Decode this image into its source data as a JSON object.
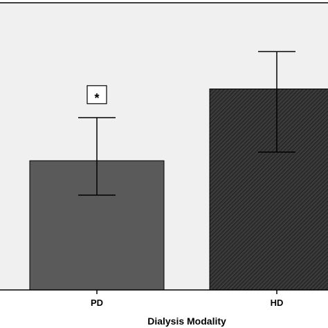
{
  "chart_data": {
    "type": "bar",
    "categories": [
      "PD",
      "HD"
    ],
    "values": [
      45,
      70
    ],
    "error_low": [
      33,
      48
    ],
    "error_high": [
      60,
      83
    ],
    "xlabel": "Dialysis Modality",
    "ylabel": "",
    "ylim": [
      0,
      100
    ],
    "grid": false,
    "annotations": [
      {
        "text": "*",
        "category": "PD",
        "y": 68
      }
    ],
    "colors": {
      "plot_background": "#f0f0f0",
      "PD": "#5a5a5a",
      "HD": "#3a3a3a",
      "HD_hatch": "#1e1e1e"
    },
    "patterns": {
      "PD": "solid",
      "HD": "diagonal-hatch"
    }
  }
}
